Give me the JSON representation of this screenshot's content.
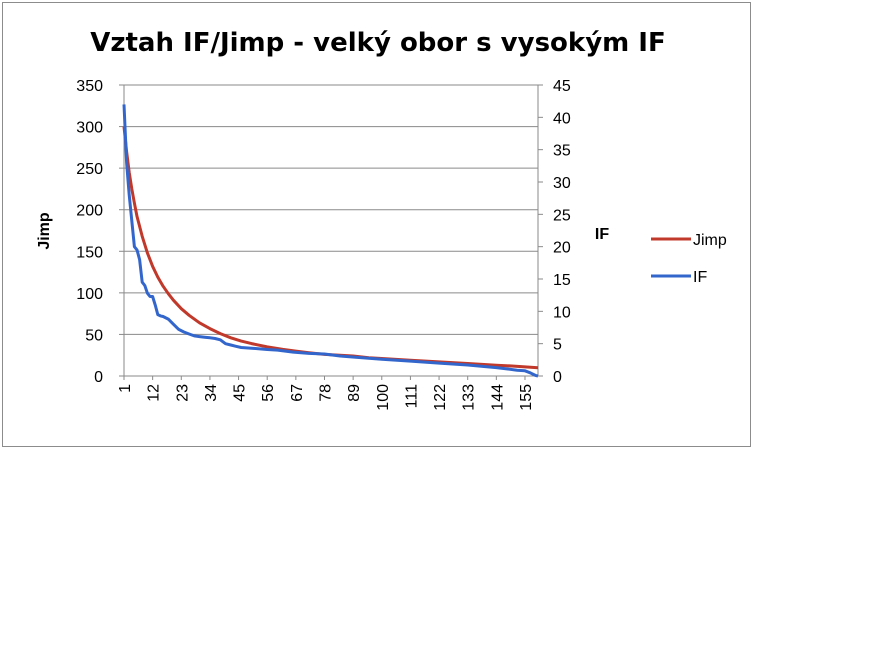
{
  "chart_data": {
    "type": "line",
    "title": "Vztah IF/Jimp - velký obor s vysokým IF",
    "ylabel": "Jimp",
    "y2label": "IF",
    "ylim": [
      0,
      350
    ],
    "y2lim": [
      0,
      45
    ],
    "yticks": [
      "0",
      "50",
      "100",
      "150",
      "200",
      "250",
      "300",
      "350"
    ],
    "y2ticks": [
      "0",
      "5",
      "10",
      "15",
      "20",
      "25",
      "30",
      "35",
      "40",
      "45"
    ],
    "x_ticks": [
      "1",
      "12",
      "23",
      "34",
      "45",
      "56",
      "67",
      "78",
      "89",
      "100",
      "111",
      "122",
      "133",
      "144",
      "155"
    ],
    "x_count": 160,
    "grid": true,
    "legend_position": "right",
    "series": [
      {
        "name": "Jimp",
        "axis": "left",
        "color": "#c0392b",
        "x": [
          1,
          2,
          3,
          4,
          5,
          6,
          8,
          10,
          12,
          14,
          16,
          18,
          20,
          23,
          26,
          30,
          34,
          38,
          42,
          46,
          50,
          56,
          62,
          67,
          72,
          78,
          84,
          89,
          95,
          100,
          111,
          122,
          133,
          144,
          150,
          155,
          160
        ],
        "values": [
          300,
          270,
          245,
          225,
          208,
          192,
          168,
          148,
          132,
          119,
          108,
          99,
          91,
          81,
          73,
          64,
          57,
          51,
          46,
          42,
          39,
          35,
          32,
          30,
          28,
          26,
          25,
          24,
          22,
          21,
          19,
          17,
          15,
          13,
          12,
          11,
          10
        ]
      },
      {
        "name": "IF",
        "axis": "right",
        "color": "#3366cc",
        "x": [
          1,
          2,
          3,
          4,
          5,
          6,
          7,
          8,
          9,
          10,
          11,
          12,
          13,
          14,
          15,
          16,
          18,
          20,
          22,
          24,
          26,
          28,
          30,
          32,
          34,
          36,
          38,
          40,
          42,
          44,
          46,
          50,
          56,
          60,
          66,
          72,
          78,
          84,
          90,
          100,
          111,
          122,
          133,
          144,
          148,
          152,
          155,
          157,
          158,
          159,
          160
        ],
        "values": [
          42,
          33,
          28,
          24,
          20,
          19.5,
          18,
          14.5,
          14,
          12.8,
          12.3,
          12.3,
          11,
          9.5,
          9.3,
          9.2,
          8.8,
          8,
          7.2,
          6.8,
          6.5,
          6.2,
          6.1,
          6,
          5.9,
          5.8,
          5.6,
          5,
          4.8,
          4.6,
          4.4,
          4.3,
          4.1,
          4,
          3.7,
          3.5,
          3.4,
          3.1,
          2.9,
          2.6,
          2.3,
          2,
          1.7,
          1.3,
          1.1,
          0.9,
          0.8,
          0.5,
          0.3,
          0.1,
          0
        ]
      }
    ]
  }
}
